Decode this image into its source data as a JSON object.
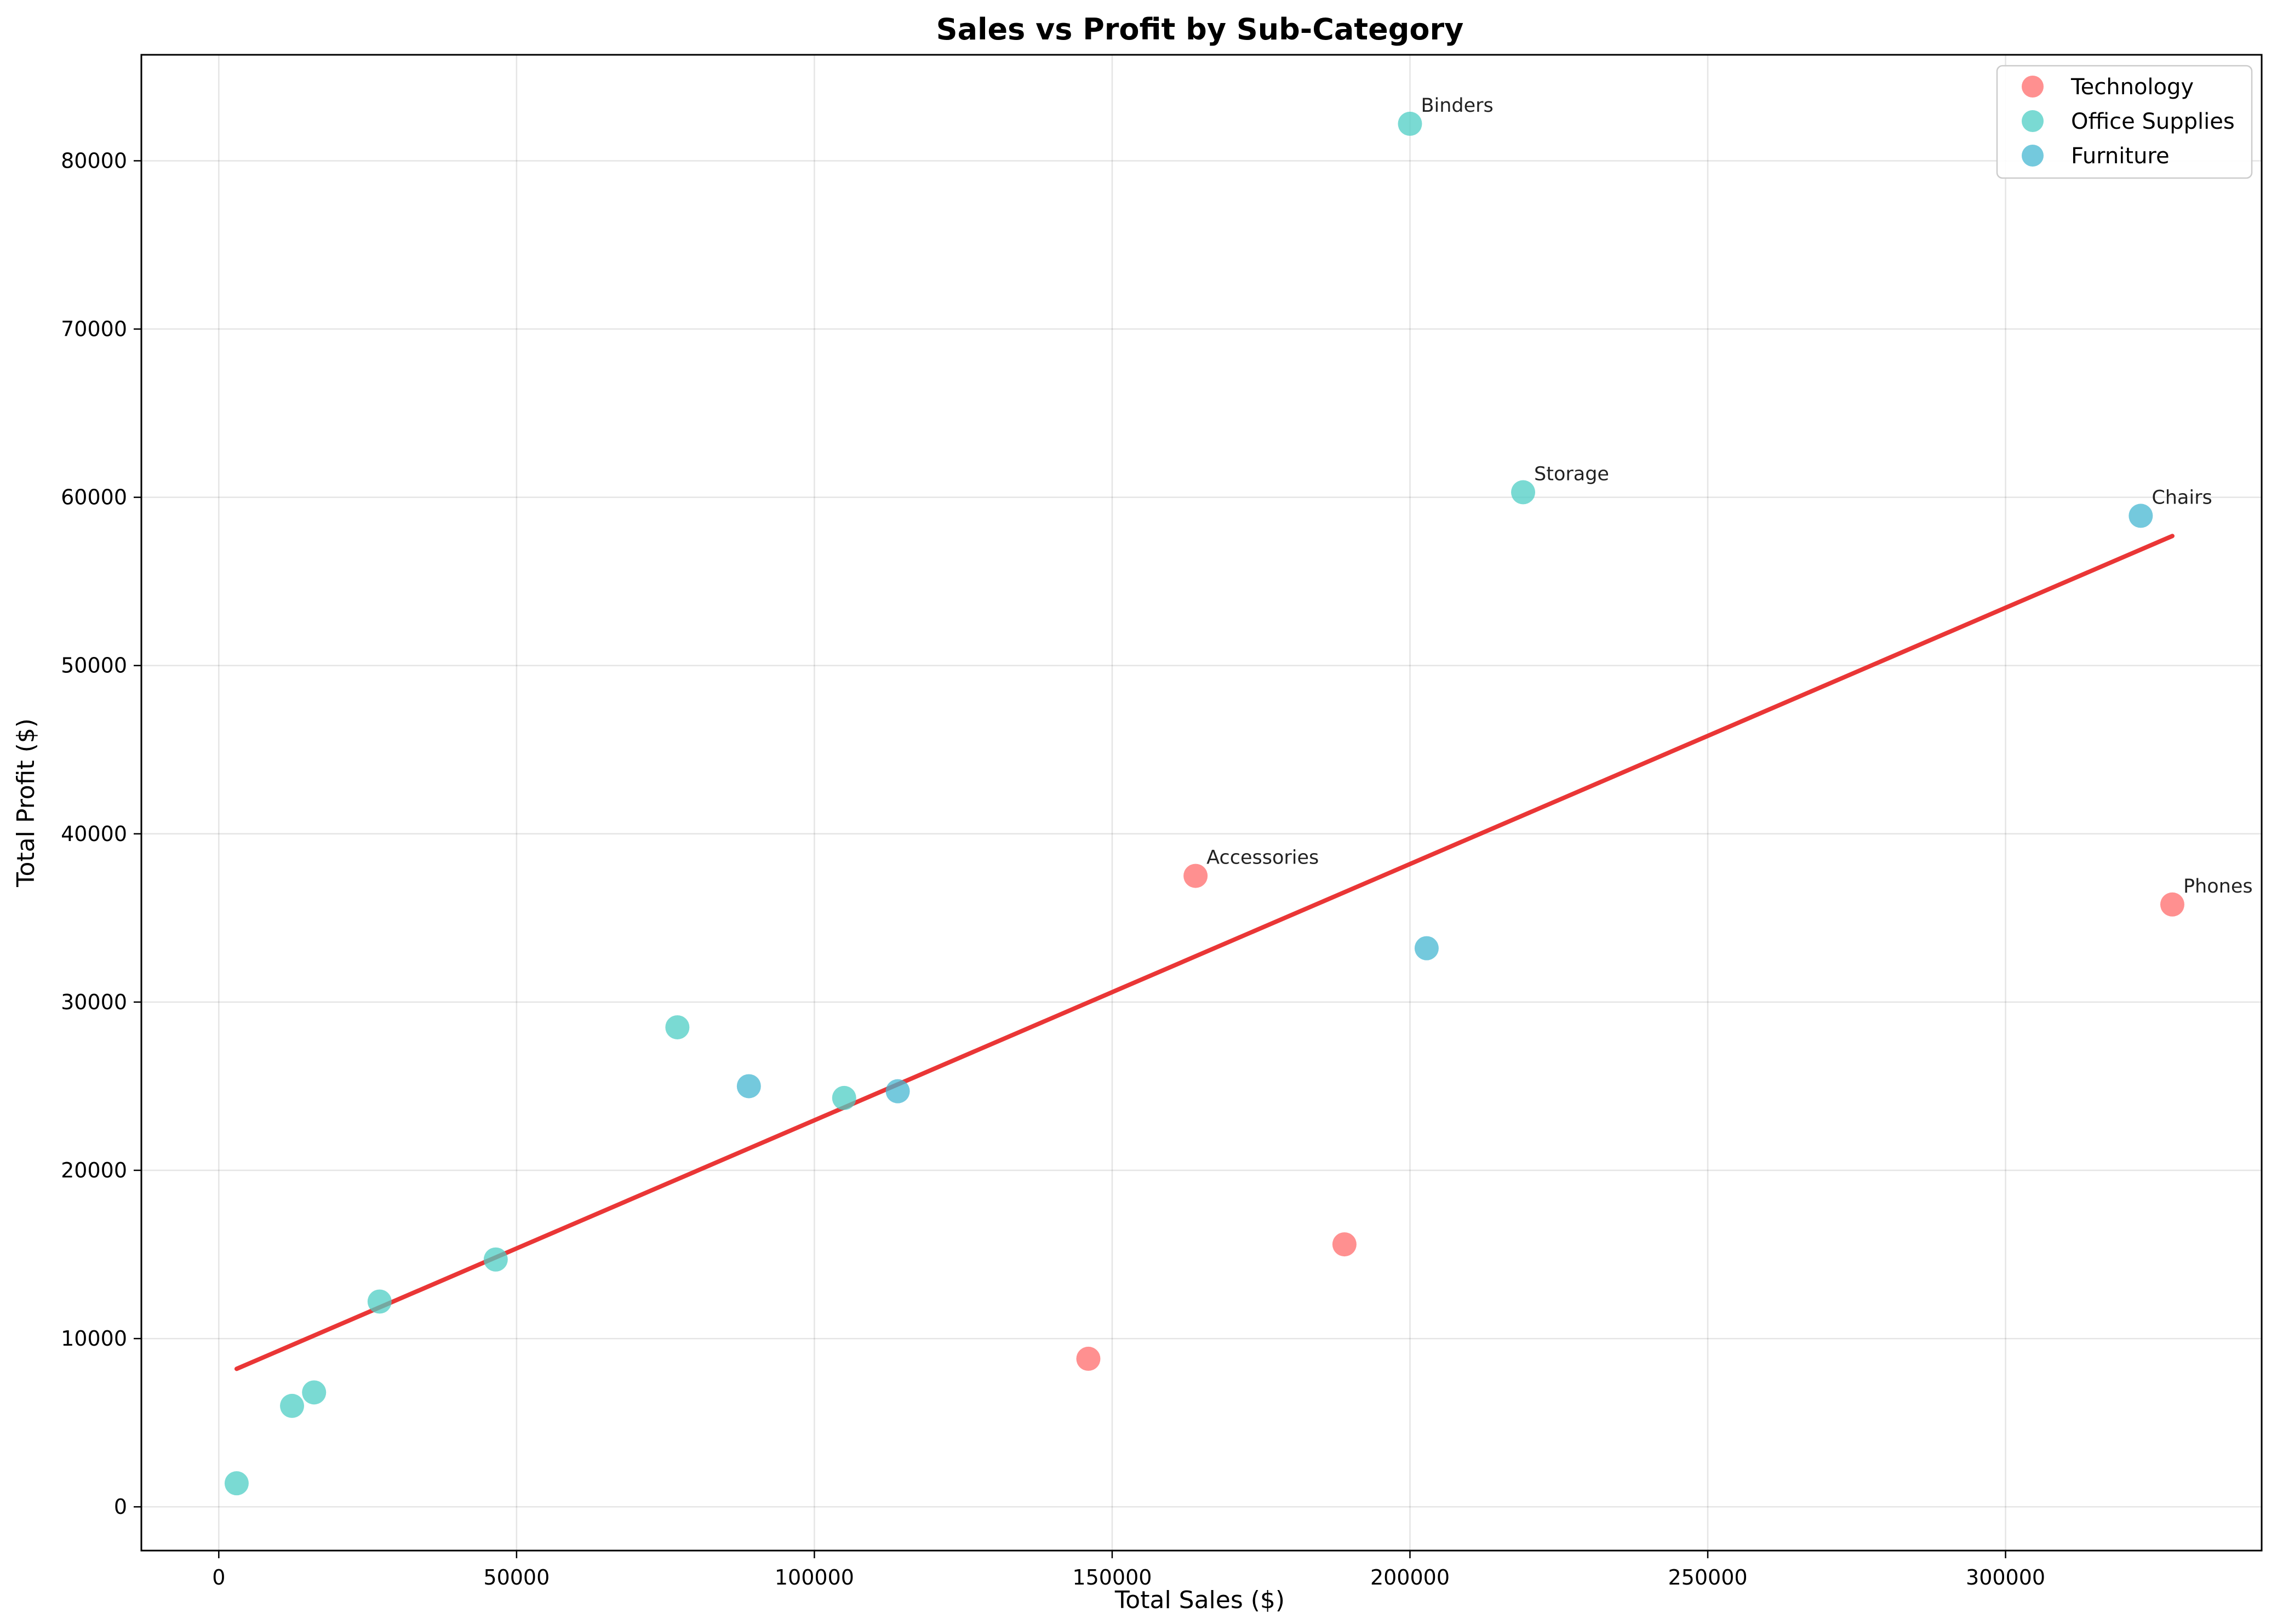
{
  "chart_data": {
    "type": "scatter",
    "title": "Sales vs Profit by Sub-Category",
    "xlabel": "Total Sales ($)",
    "ylabel": "Total Profit ($)",
    "xlim": [
      -13000,
      343000
    ],
    "ylim": [
      -2600,
      86300
    ],
    "xticks": [
      0,
      50000,
      100000,
      150000,
      200000,
      250000,
      300000
    ],
    "yticks": [
      0,
      10000,
      20000,
      30000,
      40000,
      50000,
      60000,
      70000,
      80000
    ],
    "grid": true,
    "legend_position": "top-right",
    "series": [
      {
        "name": "Technology",
        "color": "#ff6b6b",
        "points": [
          {
            "x": 164000,
            "y": 37500,
            "label": "Accessories"
          },
          {
            "x": 328000,
            "y": 35800,
            "label": "Phones"
          },
          {
            "x": 189000,
            "y": 15600,
            "label": ""
          },
          {
            "x": 146000,
            "y": 8800,
            "label": ""
          }
        ]
      },
      {
        "name": "Office Supplies",
        "color": "#4ecdc4",
        "points": [
          {
            "x": 200000,
            "y": 82200,
            "label": "Binders"
          },
          {
            "x": 219000,
            "y": 60300,
            "label": "Storage"
          },
          {
            "x": 77000,
            "y": 28500,
            "label": ""
          },
          {
            "x": 105000,
            "y": 24300,
            "label": ""
          },
          {
            "x": 46500,
            "y": 14700,
            "label": ""
          },
          {
            "x": 27000,
            "y": 12200,
            "label": ""
          },
          {
            "x": 16000,
            "y": 6800,
            "label": ""
          },
          {
            "x": 12300,
            "y": 6000,
            "label": ""
          },
          {
            "x": 3000,
            "y": 1400,
            "label": ""
          }
        ]
      },
      {
        "name": "Furniture",
        "color": "#45b7d1",
        "points": [
          {
            "x": 322700,
            "y": 58900,
            "label": "Chairs"
          },
          {
            "x": 202800,
            "y": 33200,
            "label": ""
          },
          {
            "x": 89000,
            "y": 25000,
            "label": ""
          },
          {
            "x": 114000,
            "y": 24700,
            "label": ""
          }
        ]
      }
    ],
    "trend_line": {
      "color": "#e82020",
      "x": [
        3000,
        328000
      ],
      "y": [
        8200,
        57700
      ]
    }
  }
}
